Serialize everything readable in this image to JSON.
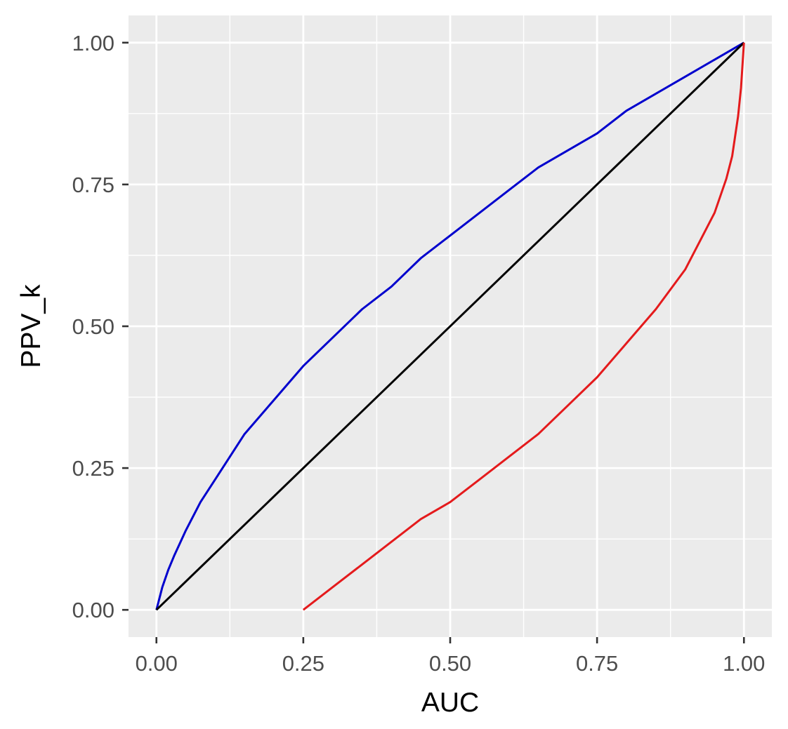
{
  "chart_data": {
    "type": "line",
    "title": "",
    "xlabel": "AUC",
    "ylabel": "PPV_k",
    "xlim": [
      -0.0475,
      1.0475
    ],
    "ylim": [
      -0.048,
      1.048
    ],
    "x_ticks": [
      0.0,
      0.25,
      0.5,
      0.75,
      1.0
    ],
    "x_tick_labels": [
      "0.00",
      "0.25",
      "0.50",
      "0.75",
      "1.00"
    ],
    "y_ticks": [
      0.0,
      0.25,
      0.5,
      0.75,
      1.0
    ],
    "y_tick_labels": [
      "0.00",
      "0.25",
      "0.50",
      "0.75",
      "1.00"
    ],
    "grid": true,
    "legend": "none",
    "panel_background": "#ebebeb",
    "series": [
      {
        "color": "#0000cd",
        "x": [
          0.0,
          0.01,
          0.02,
          0.03,
          0.05,
          0.075,
          0.1,
          0.125,
          0.15,
          0.2,
          0.25,
          0.3,
          0.35,
          0.4,
          0.45,
          0.5,
          0.55,
          0.6,
          0.65,
          0.7,
          0.75,
          0.8,
          0.85,
          0.9,
          0.95,
          1.0
        ],
        "y": [
          0.0,
          0.04,
          0.07,
          0.095,
          0.14,
          0.19,
          0.23,
          0.27,
          0.31,
          0.37,
          0.43,
          0.48,
          0.53,
          0.57,
          0.62,
          0.66,
          0.7,
          0.74,
          0.78,
          0.81,
          0.84,
          0.88,
          0.91,
          0.94,
          0.97,
          1.0
        ]
      },
      {
        "color": "#000000",
        "x": [
          0.0,
          1.0
        ],
        "y": [
          0.0,
          1.0
        ]
      },
      {
        "color": "#e41a1c",
        "x": [
          0.25,
          0.3,
          0.35,
          0.4,
          0.45,
          0.5,
          0.55,
          0.6,
          0.65,
          0.7,
          0.75,
          0.8,
          0.85,
          0.9,
          0.93,
          0.95,
          0.97,
          0.98,
          0.99,
          0.995,
          1.0
        ],
        "y": [
          0.0,
          0.04,
          0.08,
          0.12,
          0.16,
          0.19,
          0.23,
          0.27,
          0.31,
          0.36,
          0.41,
          0.47,
          0.53,
          0.6,
          0.66,
          0.7,
          0.76,
          0.8,
          0.87,
          0.92,
          1.0
        ]
      }
    ]
  }
}
